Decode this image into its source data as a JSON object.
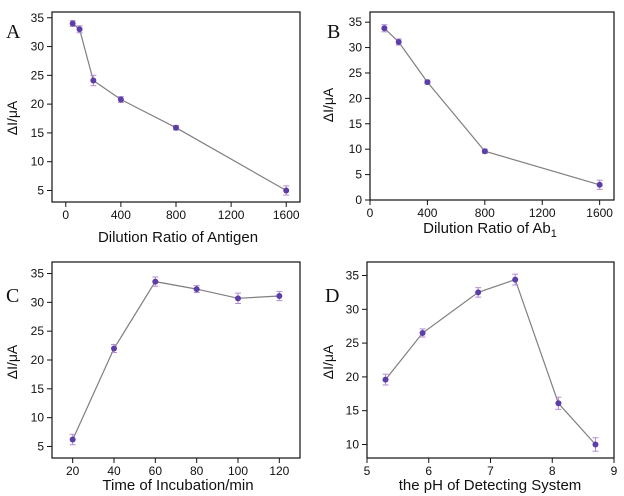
{
  "colors": {
    "line": "#7f7f7f",
    "marker": "#5b3fa6",
    "errorbar": "#b58bd6",
    "axis": "#111111"
  },
  "chart_data": [
    {
      "panel_label": "A",
      "type": "line",
      "xlabel": "Dilution Ratio of Antigen",
      "ylabel": "ΔI/μA",
      "xlim": [
        -100,
        1700
      ],
      "ylim": [
        3,
        36
      ],
      "xticks": [
        0,
        400,
        800,
        1200,
        1600
      ],
      "yticks": [
        5,
        10,
        15,
        20,
        25,
        30,
        35
      ],
      "series": [
        {
          "x": [
            50,
            100,
            200,
            400,
            800,
            1600
          ],
          "y": [
            34.0,
            33.0,
            24.1,
            20.8,
            15.9,
            5.0
          ],
          "err": [
            0.5,
            0.6,
            0.9,
            0.5,
            0.4,
            0.8
          ]
        }
      ]
    },
    {
      "panel_label": "B",
      "type": "line",
      "xlabel": "Dilution Ratio of Ab",
      "xlabel_sub": "1",
      "ylabel": "ΔI/μA",
      "xlim": [
        0,
        1700
      ],
      "ylim": [
        0,
        37
      ],
      "xticks": [
        0,
        400,
        800,
        1200,
        1600
      ],
      "yticks": [
        0,
        5,
        10,
        15,
        20,
        25,
        30,
        35
      ],
      "series": [
        {
          "x": [
            100,
            200,
            400,
            800,
            1600
          ],
          "y": [
            33.8,
            31.1,
            23.2,
            9.6,
            3.0
          ],
          "err": [
            0.7,
            0.6,
            0.4,
            0.4,
            0.9
          ]
        }
      ]
    },
    {
      "panel_label": "C",
      "type": "line",
      "xlabel": "Time of Incubation/min",
      "ylabel": "ΔI/μA",
      "xlim": [
        10,
        130
      ],
      "ylim": [
        3,
        37
      ],
      "xticks": [
        20,
        40,
        60,
        80,
        100,
        120
      ],
      "yticks": [
        5,
        10,
        15,
        20,
        25,
        30,
        35
      ],
      "series": [
        {
          "x": [
            20,
            40,
            60,
            80,
            100,
            120
          ],
          "y": [
            6.2,
            22.0,
            33.6,
            32.3,
            30.7,
            31.1
          ],
          "err": [
            0.9,
            0.7,
            0.8,
            0.6,
            0.9,
            0.8
          ]
        }
      ]
    },
    {
      "panel_label": "D",
      "type": "line",
      "xlabel": "the pH of Detecting System",
      "ylabel": "ΔI/μA",
      "xlim": [
        5,
        9
      ],
      "ylim": [
        8,
        37
      ],
      "xticks": [
        5,
        6,
        7,
        8,
        9
      ],
      "yticks": [
        10,
        15,
        20,
        25,
        30,
        35
      ],
      "series": [
        {
          "x": [
            5.3,
            5.9,
            6.8,
            7.4,
            8.1,
            8.7
          ],
          "y": [
            19.6,
            26.5,
            32.5,
            34.4,
            16.1,
            10.0
          ],
          "err": [
            0.8,
            0.6,
            0.7,
            0.8,
            0.9,
            1.0
          ]
        }
      ]
    }
  ]
}
